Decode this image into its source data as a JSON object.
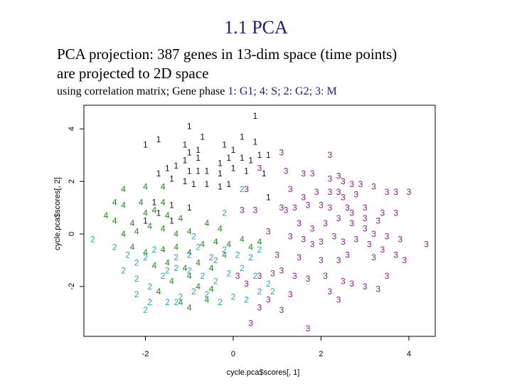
{
  "slide": {
    "title": "1.1 PCA",
    "subtitle_line1": "PCA projection: 387 genes in 13-dim space (time points)",
    "subtitle_line2": "are projected to 2D space",
    "note_prefix": "using correlation matrix; Gene phase ",
    "note_key": "1: G1; 4: S; 2: G2; 3: M"
  },
  "chart_data": {
    "type": "scatter",
    "xlabel": "cycle.pca$scores[, 1]",
    "ylabel": "cycle.pca$scores[, 2]",
    "xlim": [
      -3.4,
      4.6
    ],
    "ylim": [
      -3.9,
      4.9
    ],
    "xticks": [
      -2,
      0,
      2,
      4
    ],
    "yticks": [
      -2,
      0,
      2,
      4
    ],
    "grid": false,
    "colors": {
      "1": "#111111",
      "4": "#1a8a1a",
      "2": "#2aa6b0",
      "3": "#8a1a8a"
    },
    "series": [
      {
        "name": "1",
        "points": [
          [
            0.5,
            4.5
          ],
          [
            -1.0,
            4.1
          ],
          [
            -2.0,
            3.4
          ],
          [
            -1.7,
            3.6
          ],
          [
            -0.7,
            3.7
          ],
          [
            -1.1,
            3.4
          ],
          [
            -0.2,
            3.4
          ],
          [
            0.2,
            3.7
          ],
          [
            0.5,
            3.5
          ],
          [
            -1.0,
            3.1
          ],
          [
            -0.8,
            3.2
          ],
          [
            0.0,
            3.2
          ],
          [
            0.6,
            3.0
          ],
          [
            0.8,
            3.0
          ],
          [
            -1.1,
            2.8
          ],
          [
            -0.8,
            2.9
          ],
          [
            -0.3,
            2.7
          ],
          [
            -0.1,
            2.9
          ],
          [
            0.2,
            2.9
          ],
          [
            0.4,
            2.8
          ],
          [
            -1.5,
            2.5
          ],
          [
            -1.3,
            2.6
          ],
          [
            -1.0,
            2.4
          ],
          [
            -0.8,
            2.4
          ],
          [
            -0.6,
            2.4
          ],
          [
            -0.3,
            2.3
          ],
          [
            0.0,
            2.5
          ],
          [
            0.3,
            2.4
          ],
          [
            0.7,
            2.3
          ],
          [
            -1.7,
            2.3
          ],
          [
            -1.4,
            2.1
          ],
          [
            -1.1,
            2.0
          ],
          [
            -0.9,
            1.9
          ],
          [
            -0.6,
            1.9
          ],
          [
            -0.3,
            1.8
          ],
          [
            -0.1,
            1.9
          ],
          [
            -1.8,
            1.2
          ],
          [
            -1.4,
            1.1
          ],
          [
            -1.0,
            1.0
          ],
          [
            -2.0,
            0.5
          ],
          [
            -1.7,
            0.8
          ],
          [
            -1.4,
            0.5
          ],
          [
            0.8,
            1.4
          ]
        ]
      },
      {
        "name": "4",
        "points": [
          [
            -2.5,
            1.7
          ],
          [
            -2.0,
            1.8
          ],
          [
            -1.6,
            1.8
          ],
          [
            -2.7,
            1.2
          ],
          [
            -2.5,
            1.1
          ],
          [
            -2.1,
            1.2
          ],
          [
            -1.6,
            1.2
          ],
          [
            -2.9,
            0.7
          ],
          [
            -2.7,
            0.5
          ],
          [
            -2.3,
            0.4
          ],
          [
            -2.0,
            0.8
          ],
          [
            -1.8,
            0.9
          ],
          [
            -1.5,
            0.7
          ],
          [
            -1.2,
            0.6
          ],
          [
            -2.5,
            0.0
          ],
          [
            -2.2,
            0.1
          ],
          [
            -1.9,
            0.3
          ],
          [
            -1.6,
            0.2
          ],
          [
            -1.3,
            0.0
          ],
          [
            -1.0,
            0.1
          ],
          [
            -0.6,
            0.4
          ],
          [
            -0.3,
            0.2
          ],
          [
            -2.3,
            -0.5
          ],
          [
            -2.0,
            -0.7
          ],
          [
            -1.6,
            -0.6
          ],
          [
            -1.3,
            -0.5
          ],
          [
            -1.0,
            -0.7
          ],
          [
            -0.7,
            -0.4
          ],
          [
            -0.4,
            -0.3
          ],
          [
            -0.1,
            -0.4
          ],
          [
            -1.8,
            -1.2
          ],
          [
            -1.5,
            -1.1
          ],
          [
            -1.1,
            -1.3
          ],
          [
            -0.8,
            -1.1
          ],
          [
            -0.5,
            -1.3
          ],
          [
            -1.4,
            -1.8
          ],
          [
            -1.0,
            -1.6
          ],
          [
            -0.8,
            -2.0
          ],
          [
            -0.5,
            -2.1
          ],
          [
            -1.7,
            -2.2
          ],
          [
            -1.2,
            -2.6
          ],
          [
            -1.0,
            -2.8
          ],
          [
            -0.6,
            -2.5
          ],
          [
            0.2,
            -0.2
          ],
          [
            0.4,
            -0.5
          ],
          [
            -0.2,
            -0.8
          ],
          [
            0.6,
            -0.3
          ]
        ]
      },
      {
        "name": "2",
        "points": [
          [
            -3.2,
            -0.2
          ],
          [
            -2.7,
            -0.5
          ],
          [
            -2.4,
            -0.8
          ],
          [
            -2.2,
            -1.1
          ],
          [
            -2.0,
            -0.9
          ],
          [
            -1.8,
            -0.6
          ],
          [
            -1.5,
            -1.4
          ],
          [
            -1.3,
            -0.9
          ],
          [
            -1.0,
            -0.8
          ],
          [
            -0.8,
            -0.5
          ],
          [
            -0.5,
            -0.9
          ],
          [
            -0.2,
            -0.6
          ],
          [
            0.1,
            -0.8
          ],
          [
            0.4,
            -0.9
          ],
          [
            -2.5,
            -1.4
          ],
          [
            -2.2,
            -1.7
          ],
          [
            -1.9,
            -2.0
          ],
          [
            -1.6,
            -1.6
          ],
          [
            -1.3,
            -1.3
          ],
          [
            -1.0,
            -1.4
          ],
          [
            -0.7,
            -1.6
          ],
          [
            -0.4,
            -1.8
          ],
          [
            -0.1,
            -1.5
          ],
          [
            0.2,
            -1.3
          ],
          [
            0.5,
            -1.6
          ],
          [
            -2.2,
            -2.3
          ],
          [
            -1.9,
            -2.6
          ],
          [
            -1.5,
            -2.6
          ],
          [
            -1.3,
            -2.6
          ],
          [
            -0.9,
            -2.2
          ],
          [
            -0.6,
            -2.3
          ],
          [
            -0.3,
            -2.6
          ],
          [
            0.0,
            -2.4
          ],
          [
            0.3,
            -2.5
          ],
          [
            0.6,
            -2.2
          ],
          [
            0.8,
            -1.9
          ],
          [
            -2.0,
            -2.9
          ],
          [
            -1.2,
            -2.4
          ],
          [
            -0.4,
            -1.0
          ],
          [
            0.2,
            1.7
          ],
          [
            -0.2,
            0.8
          ],
          [
            0.6,
            -0.6
          ],
          [
            -0.9,
            -0.1
          ],
          [
            0.9,
            -2.2
          ]
        ]
      },
      {
        "name": "3",
        "points": [
          [
            1.1,
            3.1
          ],
          [
            2.2,
            3.0
          ],
          [
            0.6,
            2.5
          ],
          [
            1.2,
            2.4
          ],
          [
            1.6,
            2.3
          ],
          [
            1.8,
            2.3
          ],
          [
            2.2,
            2.1
          ],
          [
            2.4,
            2.2
          ],
          [
            2.5,
            2.0
          ],
          [
            2.7,
            1.9
          ],
          [
            2.9,
            1.9
          ],
          [
            3.2,
            1.8
          ],
          [
            3.5,
            1.6
          ],
          [
            3.7,
            1.6
          ],
          [
            4.0,
            1.6
          ],
          [
            0.3,
            1.7
          ],
          [
            1.3,
            1.7
          ],
          [
            1.6,
            1.4
          ],
          [
            1.9,
            1.6
          ],
          [
            2.2,
            1.6
          ],
          [
            2.4,
            1.6
          ],
          [
            2.5,
            1.4
          ],
          [
            2.8,
            1.5
          ],
          [
            1.1,
            1.0
          ],
          [
            1.4,
            1.0
          ],
          [
            1.7,
            1.1
          ],
          [
            2.0,
            1.1
          ],
          [
            2.2,
            1.0
          ],
          [
            2.6,
            1.0
          ],
          [
            3.0,
            1.0
          ],
          [
            3.4,
            0.8
          ],
          [
            3.7,
            0.8
          ],
          [
            0.2,
            0.9
          ],
          [
            0.5,
            0.9
          ],
          [
            1.2,
            0.9
          ],
          [
            2.7,
            0.8
          ],
          [
            3.0,
            0.6
          ],
          [
            3.3,
            0.5
          ],
          [
            1.5,
            0.4
          ],
          [
            1.8,
            0.2
          ],
          [
            2.1,
            0.4
          ],
          [
            2.4,
            0.6
          ],
          [
            2.7,
            0.4
          ],
          [
            3.0,
            0.2
          ],
          [
            3.2,
            0.0
          ],
          [
            3.5,
            -0.1
          ],
          [
            3.8,
            -0.2
          ],
          [
            4.4,
            -0.4
          ],
          [
            0.8,
            0.1
          ],
          [
            1.3,
            -0.1
          ],
          [
            1.6,
            -0.2
          ],
          [
            1.8,
            -0.4
          ],
          [
            2.0,
            -0.3
          ],
          [
            2.3,
            -0.1
          ],
          [
            2.5,
            -0.3
          ],
          [
            2.8,
            -0.2
          ],
          [
            3.1,
            -0.4
          ],
          [
            3.4,
            -0.6
          ],
          [
            3.7,
            -0.8
          ],
          [
            1.0,
            -0.8
          ],
          [
            1.5,
            -0.9
          ],
          [
            2.0,
            -1.0
          ],
          [
            2.4,
            -1.0
          ],
          [
            2.6,
            -0.8
          ],
          [
            3.2,
            -0.9
          ],
          [
            3.9,
            -1.0
          ],
          [
            1.1,
            -1.4
          ],
          [
            1.4,
            -1.6
          ],
          [
            1.7,
            -1.7
          ],
          [
            2.1,
            -1.6
          ],
          [
            2.5,
            -1.8
          ],
          [
            2.7,
            -1.9
          ],
          [
            3.0,
            -2.0
          ],
          [
            3.3,
            -2.1
          ],
          [
            3.5,
            -1.6
          ],
          [
            0.1,
            -1.6
          ],
          [
            0.3,
            -1.9
          ],
          [
            0.6,
            -1.6
          ],
          [
            0.9,
            -1.5
          ],
          [
            1.3,
            -2.3
          ],
          [
            2.2,
            -2.2
          ],
          [
            2.4,
            -2.5
          ],
          [
            0.6,
            -2.8
          ],
          [
            1.1,
            -2.9
          ],
          [
            0.4,
            -3.4
          ],
          [
            1.7,
            -3.6
          ],
          [
            0.8,
            -2.5
          ]
        ]
      }
    ]
  }
}
